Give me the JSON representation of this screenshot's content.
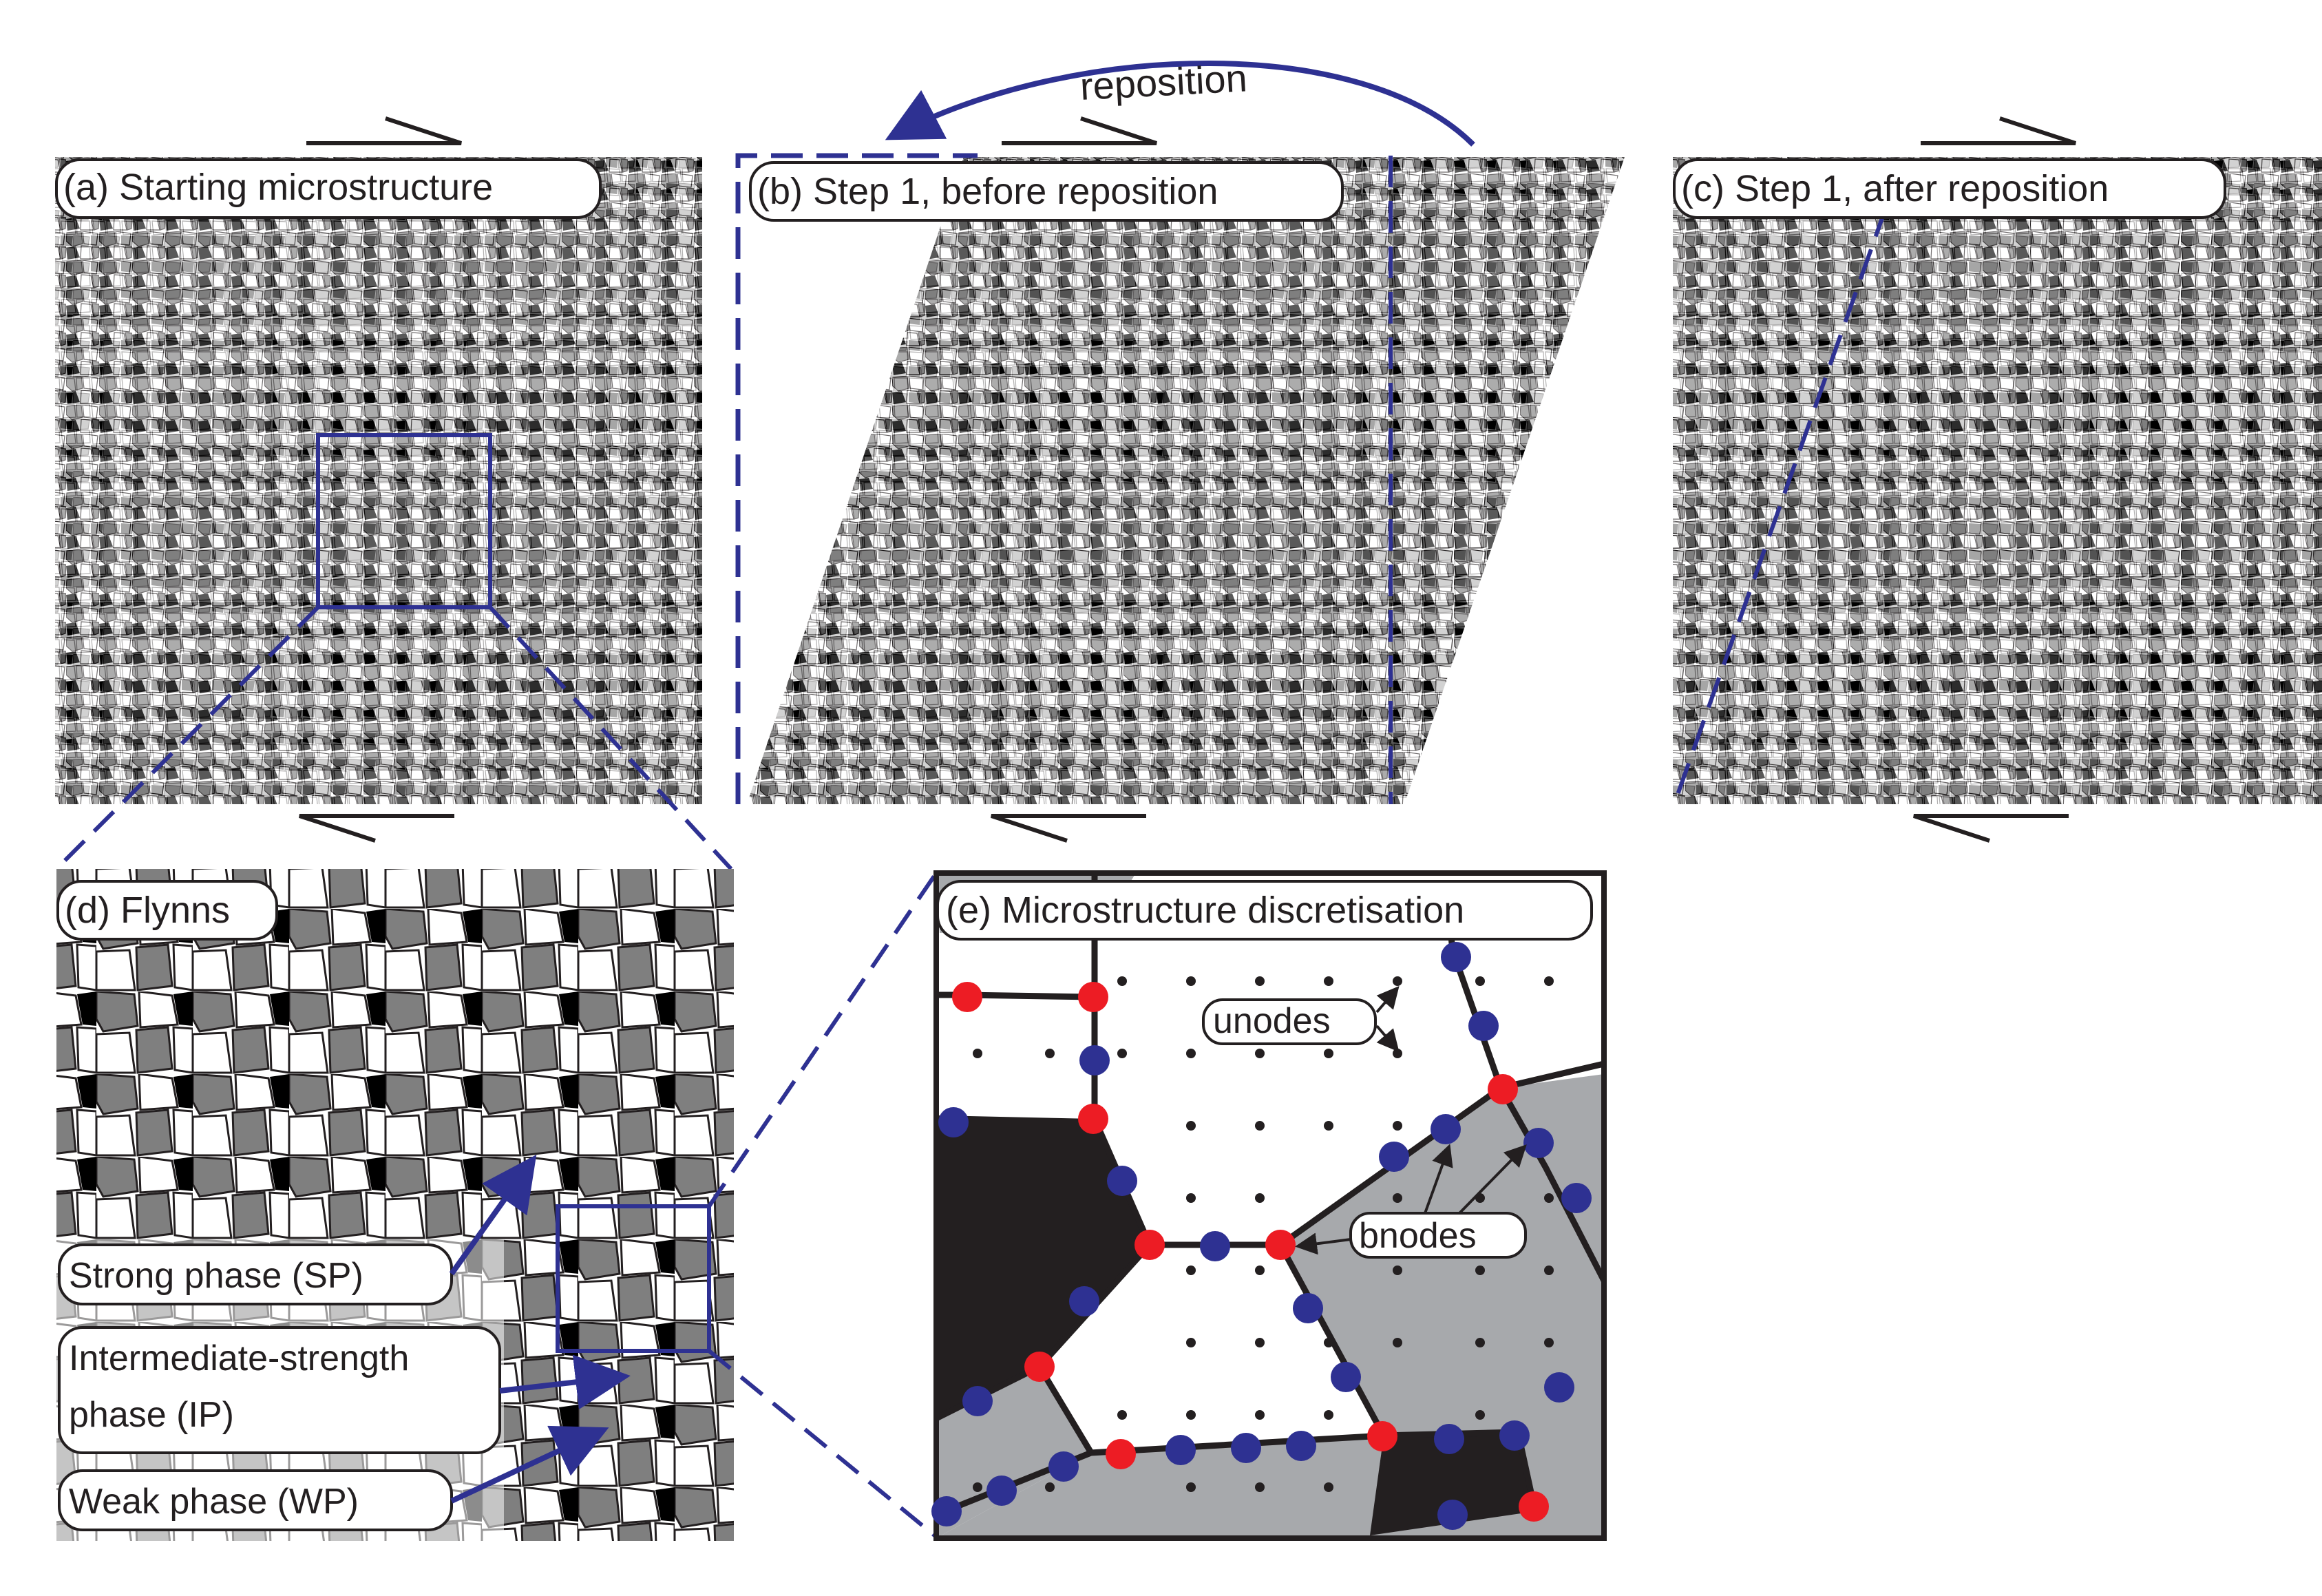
{
  "panels": {
    "a": {
      "label": "(a) Starting microstructure"
    },
    "b": {
      "label": "(b) Step 1, before reposition"
    },
    "c": {
      "label": "(c) Step 1, after reposition"
    },
    "d": {
      "label": "(d) Flynns"
    },
    "e": {
      "label": "(e) Microstructure discretisation"
    }
  },
  "annotations": {
    "reposition": "reposition",
    "unodes": "unodes",
    "bnodes": "bnodes",
    "strong_phase": "Strong phase (SP)",
    "intermediate_line1": "Intermediate-strength",
    "intermediate_line2": "phase (IP)",
    "weak_phase": "Weak phase (WP)"
  },
  "colors": {
    "strong_phase": "#ffffff",
    "intermediate_phase": "#7f7f7f",
    "weak_phase": "#000000",
    "panel_e_grey": "#a7a9ac",
    "panel_e_black": "#231f20",
    "bnode_blue": "#2e3192",
    "bnode_red": "#ed1c24",
    "guide_blue": "#2e3192"
  },
  "icons": [
    "shear-arrow-icon",
    "reposition-arrow-icon",
    "zoom-box-icon"
  ]
}
